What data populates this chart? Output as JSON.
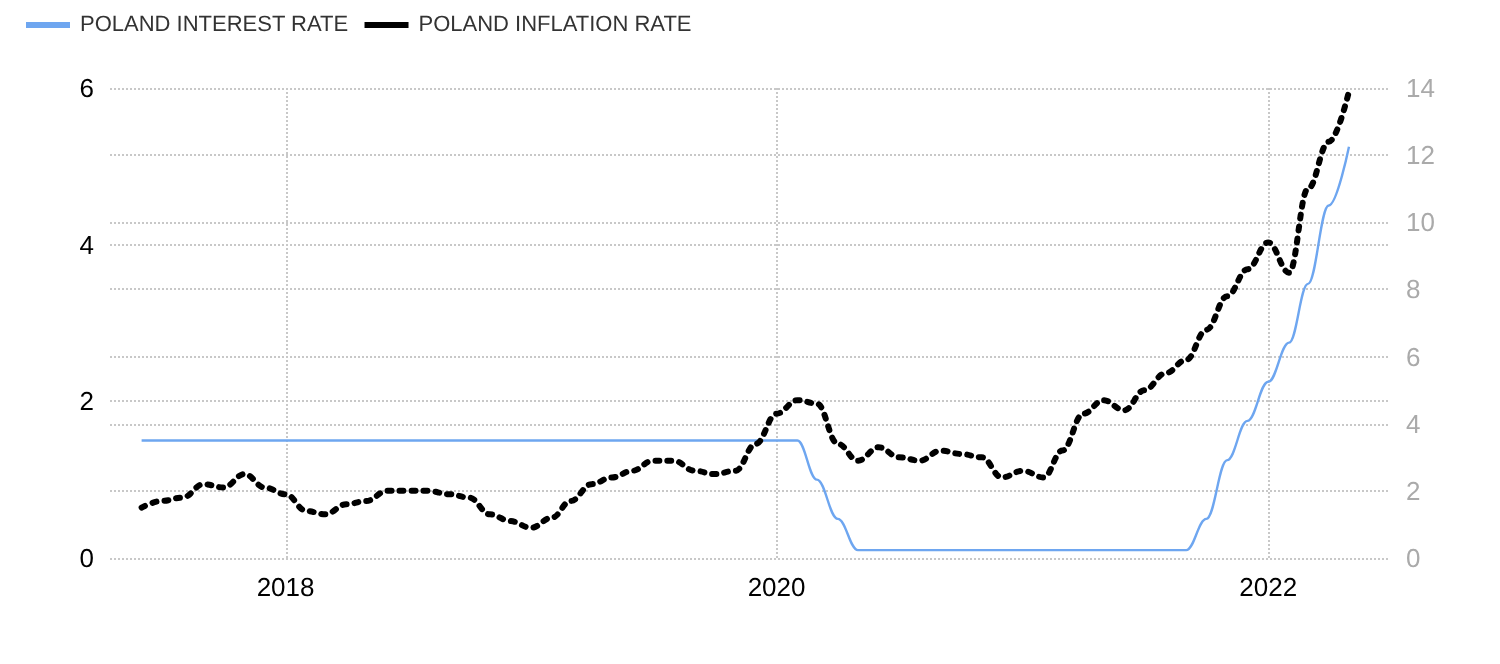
{
  "chart_data": {
    "type": "line",
    "x": [
      "2017-06",
      "2017-07",
      "2017-08",
      "2017-09",
      "2017-10",
      "2017-11",
      "2017-12",
      "2018-01",
      "2018-02",
      "2018-03",
      "2018-04",
      "2018-05",
      "2018-06",
      "2018-07",
      "2018-08",
      "2018-09",
      "2018-10",
      "2018-11",
      "2018-12",
      "2019-01",
      "2019-02",
      "2019-03",
      "2019-04",
      "2019-05",
      "2019-06",
      "2019-07",
      "2019-08",
      "2019-09",
      "2019-10",
      "2019-11",
      "2019-12",
      "2020-01",
      "2020-02",
      "2020-03",
      "2020-04",
      "2020-05",
      "2020-06",
      "2020-07",
      "2020-08",
      "2020-09",
      "2020-10",
      "2020-11",
      "2020-12",
      "2021-01",
      "2021-02",
      "2021-03",
      "2021-04",
      "2021-05",
      "2021-06",
      "2021-07",
      "2021-08",
      "2021-09",
      "2021-10",
      "2021-11",
      "2021-12",
      "2022-01",
      "2022-02",
      "2022-03",
      "2022-04",
      "2022-05"
    ],
    "series": [
      {
        "name": "POLAND INTEREST RATE",
        "color": "#6ea6f0",
        "line_style": "solid",
        "values": [
          1.5,
          1.5,
          1.5,
          1.5,
          1.5,
          1.5,
          1.5,
          1.5,
          1.5,
          1.5,
          1.5,
          1.5,
          1.5,
          1.5,
          1.5,
          1.5,
          1.5,
          1.5,
          1.5,
          1.5,
          1.5,
          1.5,
          1.5,
          1.5,
          1.5,
          1.5,
          1.5,
          1.5,
          1.5,
          1.5,
          1.5,
          1.5,
          1.5,
          1.0,
          0.5,
          0.1,
          0.1,
          0.1,
          0.1,
          0.1,
          0.1,
          0.1,
          0.1,
          0.1,
          0.1,
          0.1,
          0.1,
          0.1,
          0.1,
          0.1,
          0.1,
          0.1,
          0.5,
          1.25,
          1.75,
          2.25,
          2.75,
          3.5,
          4.5,
          5.25
        ]
      },
      {
        "name": "POLAND INFLATION RATE",
        "color": "#000000",
        "line_style": "dotted",
        "axis": "y2",
        "values": [
          1.5,
          1.7,
          1.8,
          2.2,
          2.1,
          2.5,
          2.1,
          1.9,
          1.4,
          1.3,
          1.6,
          1.7,
          2.0,
          2.0,
          2.0,
          1.9,
          1.8,
          1.3,
          1.1,
          0.9,
          1.2,
          1.7,
          2.2,
          2.4,
          2.6,
          2.9,
          2.9,
          2.6,
          2.5,
          2.6,
          3.4,
          4.3,
          4.7,
          4.6,
          3.4,
          2.9,
          3.3,
          3.0,
          2.9,
          3.2,
          3.1,
          3.0,
          2.4,
          2.6,
          2.4,
          3.2,
          4.3,
          4.7,
          4.4,
          5.0,
          5.5,
          5.9,
          6.8,
          7.8,
          8.6,
          9.4,
          8.5,
          11.0,
          12.4,
          13.9
        ]
      }
    ],
    "xlim": [
      "2017-04-15",
      "2022-07-01"
    ],
    "xticks": [
      "2018",
      "2020",
      "2022"
    ],
    "ylim": [
      0,
      6
    ],
    "yticks": [
      0,
      2,
      4,
      6
    ],
    "y2lim": [
      0,
      14
    ],
    "y2ticks": [
      0,
      2,
      4,
      6,
      8,
      10,
      12,
      14
    ],
    "grid": true,
    "legend": "top left",
    "marker": "none"
  }
}
